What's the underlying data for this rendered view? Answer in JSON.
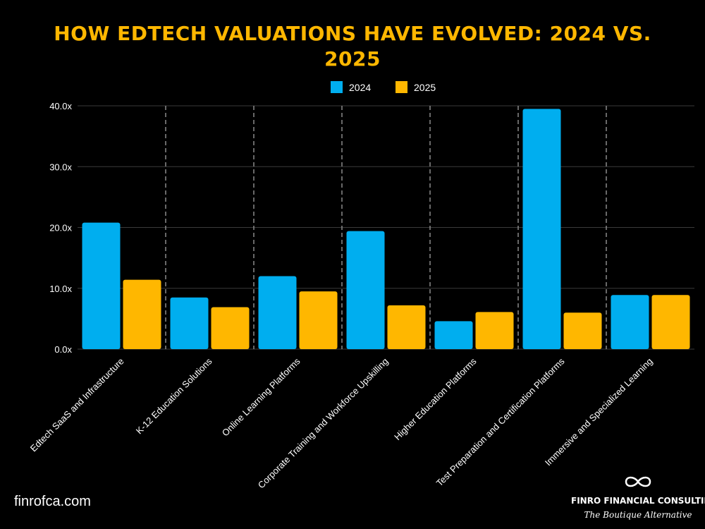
{
  "colors": {
    "accent": "#FFB700",
    "series_2024": "#00AEEF",
    "series_2025": "#FFB700",
    "text": "#FFFFFF",
    "grid": "#3A3A3A"
  },
  "footer": {
    "website": "finrofca.com",
    "brand_name": "FINRO FINANCIAL CONSULTING",
    "tagline": "The Boutique Alternative",
    "logo_icon": "infinity-icon"
  },
  "chart_data": {
    "type": "bar",
    "title": "HOW EDTECH VALUATIONS HAVE EVOLVED: 2024 VS. 2025",
    "categories": [
      "Edtech SaaS and Infrastructure",
      "K-12 Education Solutions",
      "Online Learning Platforms",
      "Corporate Training and Workforce Upskilling",
      "Higher Education Platforms",
      "Test Preparation and Certification Platforms",
      "Immersive and Specialized Learning"
    ],
    "series": [
      {
        "name": "2024",
        "values": [
          20.8,
          8.5,
          12.0,
          19.4,
          4.6,
          39.5,
          8.9
        ]
      },
      {
        "name": "2025",
        "values": [
          11.4,
          6.9,
          9.5,
          7.2,
          6.1,
          6.0,
          8.9
        ]
      }
    ],
    "y_ticks": [
      "0.0x",
      "10.0x",
      "20.0x",
      "30.0x",
      "40.0x"
    ],
    "ylim": [
      0,
      40
    ],
    "xlabel": "",
    "ylabel": "",
    "legend_position": "top",
    "grid": true
  }
}
